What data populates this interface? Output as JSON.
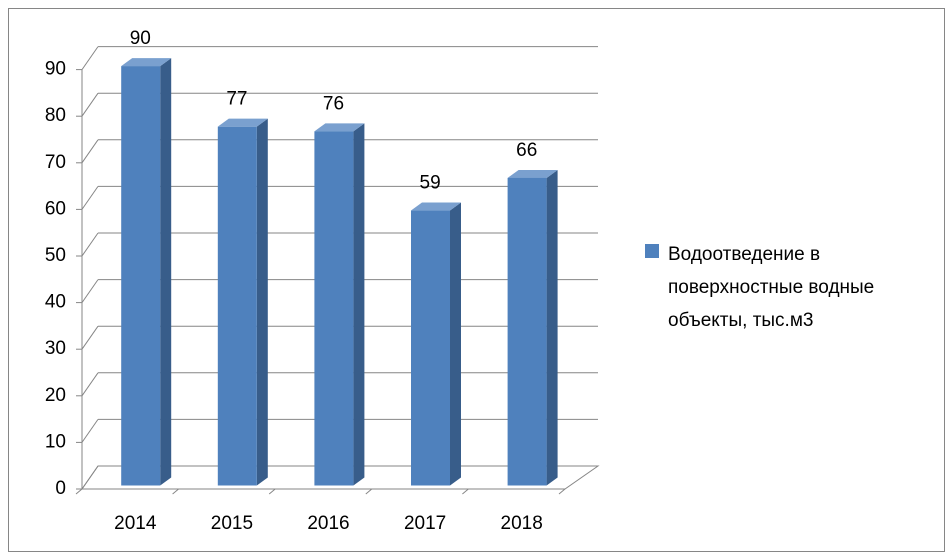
{
  "chart_data": {
    "type": "bar",
    "categories": [
      "2014",
      "2015",
      "2016",
      "2017",
      "2018"
    ],
    "series": [
      {
        "name": "Водоотведение в поверхностные водные объекты, тыс.м3",
        "color": "#4f81bd",
        "values": [
          90,
          77,
          76,
          59,
          66
        ]
      }
    ],
    "ylim": [
      0,
      90
    ],
    "yticks": [
      0,
      10,
      20,
      30,
      40,
      50,
      60,
      70,
      80,
      90
    ],
    "grid": true,
    "legend": "right"
  }
}
